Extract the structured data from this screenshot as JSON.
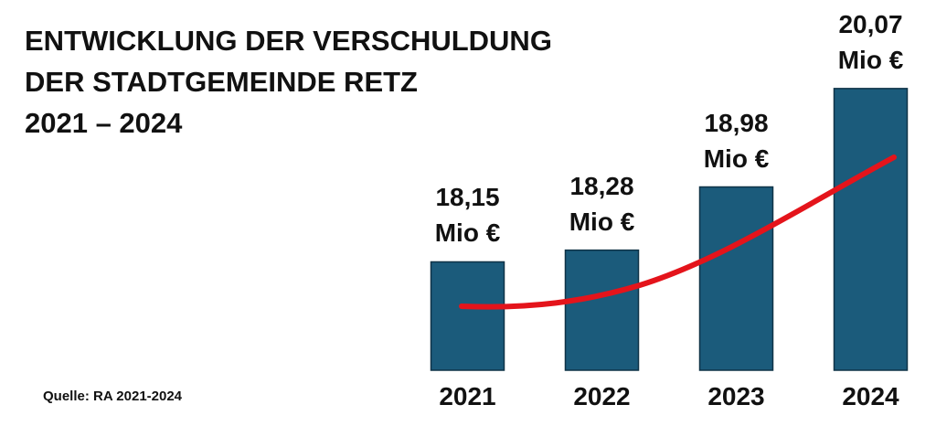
{
  "chart_data": {
    "type": "bar",
    "title": "ENTWICKLUNG DER VERSCHULDUNG\nDER STADTGEMEINDE RETZ",
    "subtitle": "2021 – 2024",
    "source": "Quelle: RA 2021-2024",
    "categories": [
      "2021",
      "2022",
      "2023",
      "2024"
    ],
    "values": [
      18.15,
      18.28,
      18.98,
      20.07
    ],
    "value_labels": [
      "18,15\nMio €",
      "18,28\nMio €",
      "18,98\nMio €",
      "20,07\nMio €"
    ],
    "color": "#1b5b7b",
    "ylim": [
      16.95,
      21
    ]
  }
}
